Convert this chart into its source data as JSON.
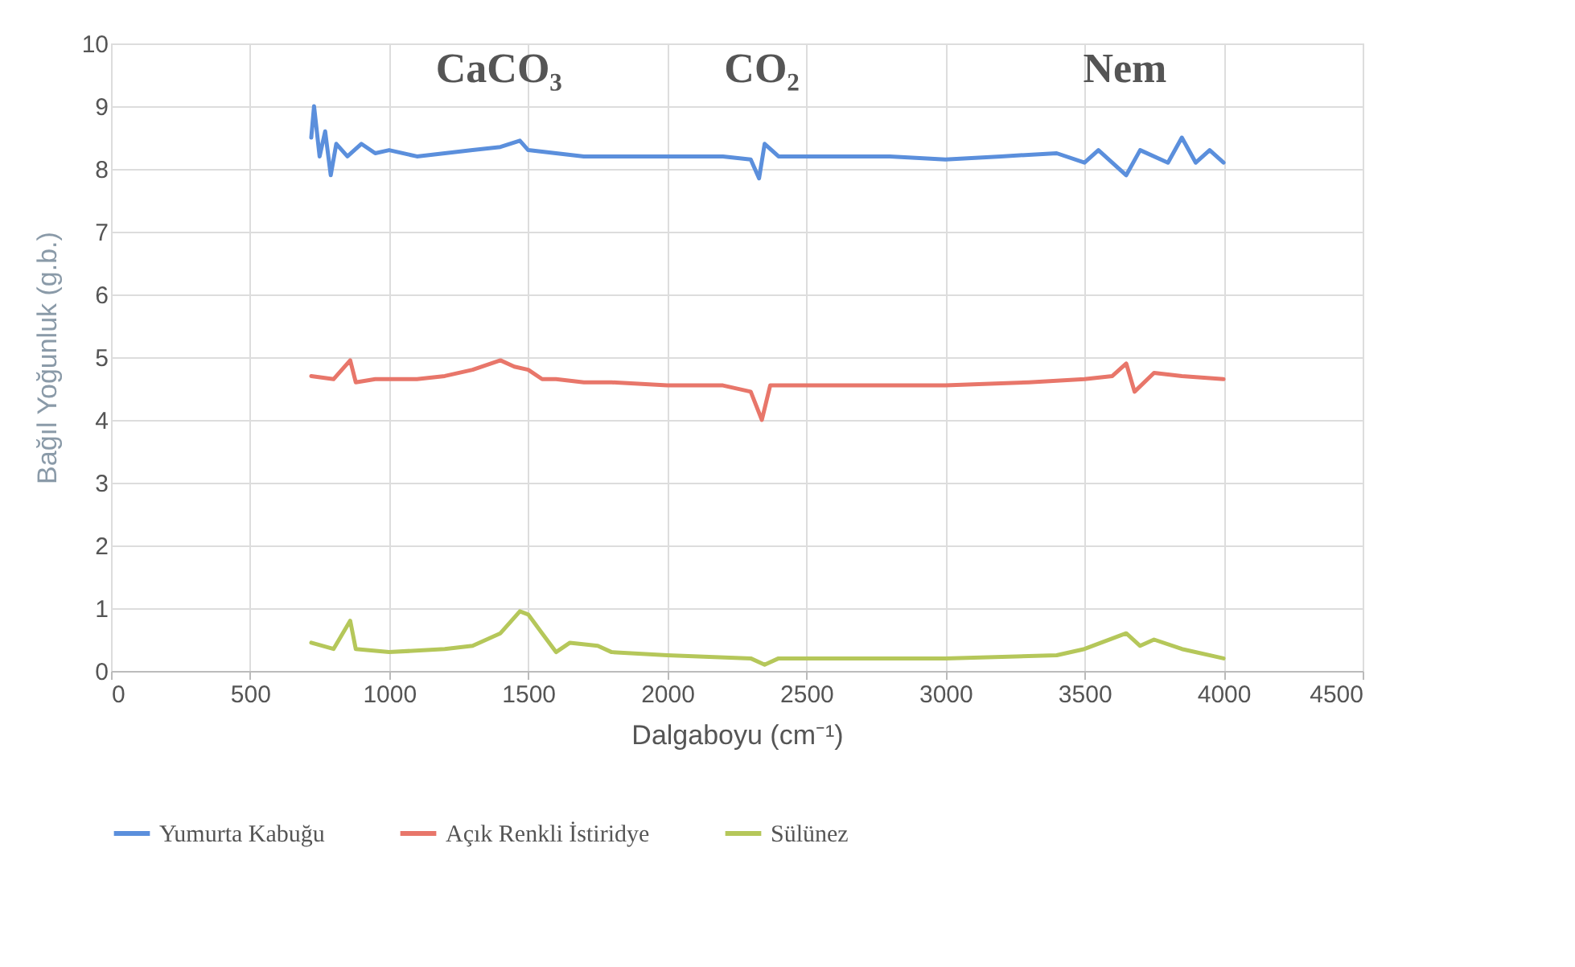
{
  "chart_data": {
    "type": "line",
    "xlabel": "Dalgaboyu (cm⁻¹)",
    "ylabel": "Bağıl Yoğunluk (g.b.)",
    "xlim": [
      0,
      4500
    ],
    "xticks": [
      0,
      500,
      1000,
      1500,
      2000,
      2500,
      3000,
      3500,
      4000,
      4500
    ],
    "ylim": [
      0,
      10
    ],
    "yticks": [
      0,
      1,
      2,
      3,
      4,
      5,
      6,
      7,
      8,
      9,
      10
    ],
    "grid": true,
    "legend": "bottom",
    "marker": "none",
    "line_style": "solid",
    "annotations": [
      "CaCO₃",
      "CO₂",
      "Nem"
    ],
    "series": [
      {
        "name": "Yumurta Kabuğu",
        "color": "#5b8fdc",
        "x": [
          720,
          730,
          750,
          770,
          790,
          810,
          850,
          900,
          950,
          1000,
          1100,
          1200,
          1300,
          1400,
          1470,
          1500,
          1600,
          1700,
          1800,
          2000,
          2200,
          2300,
          2330,
          2350,
          2400,
          2600,
          2800,
          3000,
          3200,
          3400,
          3500,
          3550,
          3650,
          3700,
          3800,
          3850,
          3900,
          3950,
          4000
        ],
        "values": [
          8.5,
          9.0,
          8.2,
          8.6,
          7.9,
          8.4,
          8.2,
          8.4,
          8.25,
          8.3,
          8.2,
          8.25,
          8.3,
          8.35,
          8.45,
          8.3,
          8.25,
          8.2,
          8.2,
          8.2,
          8.2,
          8.15,
          7.85,
          8.4,
          8.2,
          8.2,
          8.2,
          8.15,
          8.2,
          8.25,
          8.1,
          8.3,
          7.9,
          8.3,
          8.1,
          8.5,
          8.1,
          8.3,
          8.1
        ]
      },
      {
        "name": "Açık Renkli İstiridye",
        "color": "#e8766a",
        "x": [
          720,
          800,
          860,
          880,
          950,
          1100,
          1200,
          1300,
          1400,
          1450,
          1500,
          1550,
          1600,
          1700,
          1800,
          2000,
          2200,
          2300,
          2340,
          2370,
          2500,
          3000,
          3300,
          3500,
          3600,
          3650,
          3680,
          3750,
          3850,
          4000
        ],
        "values": [
          4.7,
          4.65,
          4.95,
          4.6,
          4.65,
          4.65,
          4.7,
          4.8,
          4.95,
          4.85,
          4.8,
          4.65,
          4.65,
          4.6,
          4.6,
          4.55,
          4.55,
          4.45,
          4.0,
          4.55,
          4.55,
          4.55,
          4.6,
          4.65,
          4.7,
          4.9,
          4.45,
          4.75,
          4.7,
          4.65
        ]
      },
      {
        "name": "Sülünez",
        "color": "#b5c75a",
        "x": [
          720,
          800,
          860,
          880,
          1000,
          1200,
          1300,
          1400,
          1470,
          1500,
          1550,
          1600,
          1650,
          1750,
          1800,
          2000,
          2300,
          2350,
          2400,
          3000,
          3400,
          3500,
          3650,
          3700,
          3750,
          3850,
          4000
        ],
        "values": [
          0.45,
          0.35,
          0.8,
          0.35,
          0.3,
          0.35,
          0.4,
          0.6,
          0.95,
          0.9,
          0.6,
          0.3,
          0.45,
          0.4,
          0.3,
          0.25,
          0.2,
          0.1,
          0.2,
          0.2,
          0.25,
          0.35,
          0.6,
          0.4,
          0.5,
          0.35,
          0.2
        ]
      }
    ]
  }
}
